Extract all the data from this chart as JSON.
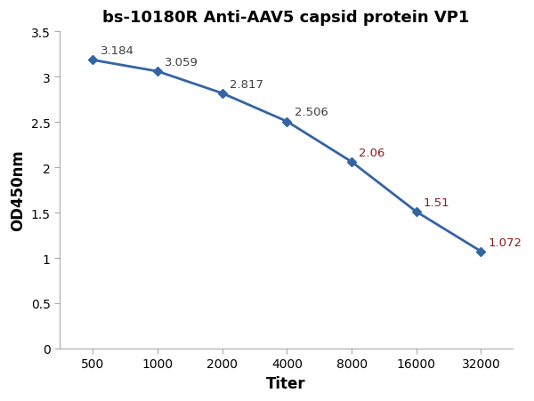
{
  "title": "bs-10180R Anti-AAV5 capsid protein VP1",
  "xlabel": "Titer",
  "ylabel": "OD450nm",
  "x_values": [
    500,
    1000,
    2000,
    4000,
    8000,
    16000,
    32000
  ],
  "y_values": [
    3.184,
    3.059,
    2.817,
    2.506,
    2.06,
    1.51,
    1.072
  ],
  "annotations": [
    "3.184",
    "3.059",
    "2.817",
    "2.506",
    "2.06",
    "1.51",
    "1.072"
  ],
  "line_color": "#3464A4",
  "marker_color": "#3464A4",
  "annotation_color_default": "#404040",
  "annotation_color_highlight": "#8B1A1A",
  "highlight_indices": [
    4,
    5,
    6
  ],
  "ylim": [
    0,
    3.5
  ],
  "yticks": [
    0,
    0.5,
    1.0,
    1.5,
    2.0,
    2.5,
    3.0,
    3.5
  ],
  "xticks": [
    500,
    1000,
    2000,
    4000,
    8000,
    16000,
    32000
  ],
  "title_fontsize": 13,
  "axis_label_fontsize": 12,
  "tick_fontsize": 10,
  "annotation_fontsize": 9.5,
  "background_color": "#ffffff",
  "plot_bg_color": "#ffffff",
  "figsize": [
    6.0,
    4.52
  ],
  "dpi": 100
}
